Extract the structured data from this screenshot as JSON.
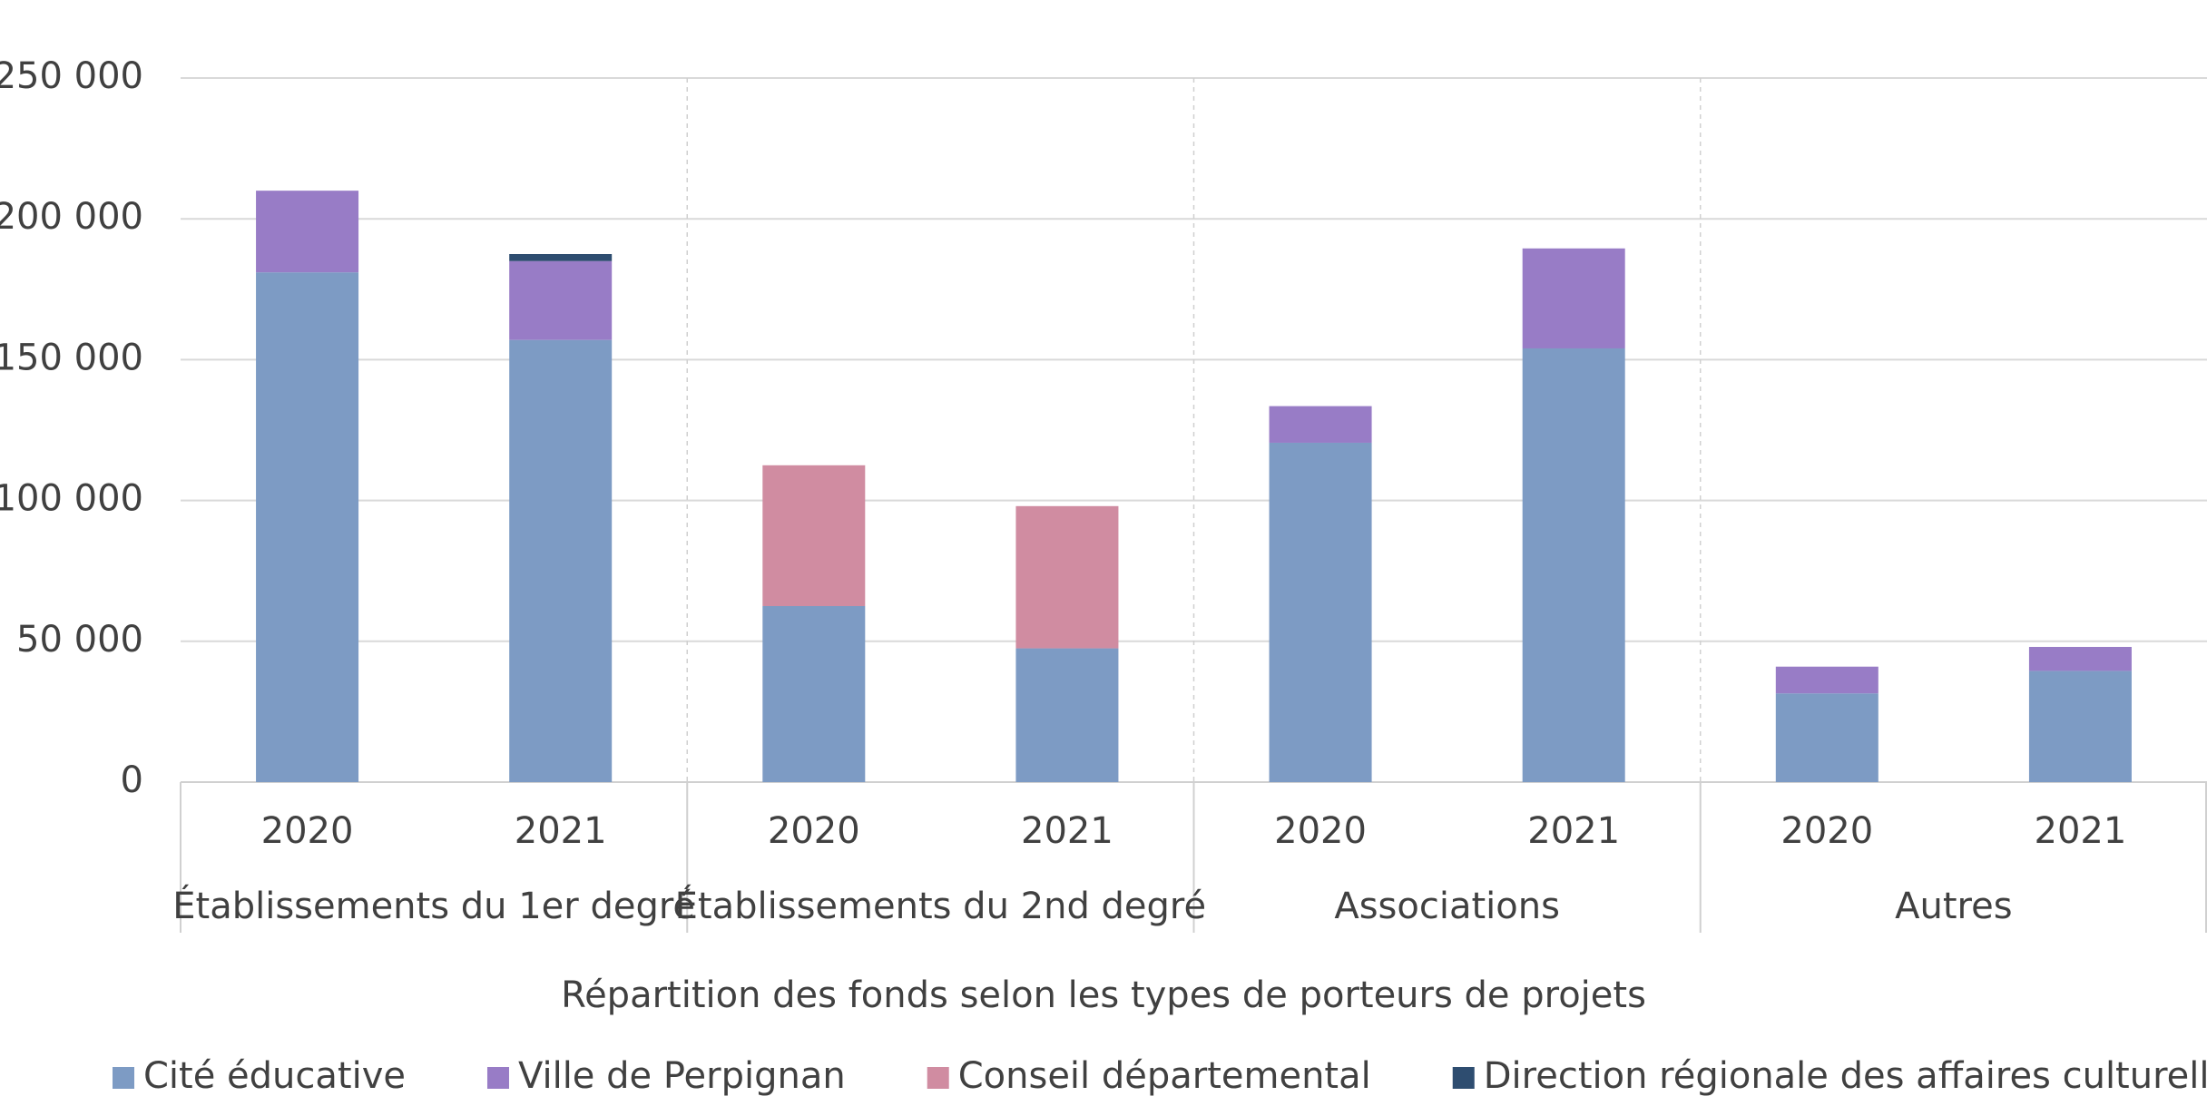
{
  "chart_data": {
    "type": "stacked-bar",
    "x_label": "Répartition des fonds selon les types de porteurs de projets",
    "categories": [
      "2020",
      "2021",
      "2020",
      "2021",
      "2020",
      "2021",
      "2020",
      "2021"
    ],
    "groups": [
      "Établissements du 1er degré",
      "Établissements du 2nd degré",
      "Associations",
      "Autres"
    ],
    "series": [
      {
        "name": "Cité éducative",
        "color": "#7d9bc4",
        "values": [
          181000,
          157000,
          62500,
          47500,
          120500,
          154000,
          31500,
          39500
        ]
      },
      {
        "name": "Ville de Perpignan",
        "color": "#987cc6",
        "values": [
          29000,
          28000,
          null,
          null,
          13000,
          35500,
          9500,
          8500
        ]
      },
      {
        "name": "Conseil départemental",
        "color": "#d08ca1",
        "values": [
          null,
          null,
          50000,
          50500,
          null,
          null,
          null,
          null
        ]
      },
      {
        "name": "Direction régionale des affaires culturelles",
        "color": "#2e4d70",
        "values": [
          null,
          2500,
          null,
          null,
          null,
          null,
          null,
          null
        ]
      }
    ],
    "ylim": [
      0,
      250000
    ],
    "yticks": [
      0,
      {
        "value": 50000,
        "label": "50 000"
      },
      {
        "value": 100000,
        "label": "100 000"
      },
      {
        "value": 150000,
        "label": "150 000"
      },
      {
        "value": 200000,
        "label": "200 000"
      },
      {
        "value": 250000,
        "label": "250 000"
      }
    ],
    "grid": true,
    "legend": "bottom"
  }
}
